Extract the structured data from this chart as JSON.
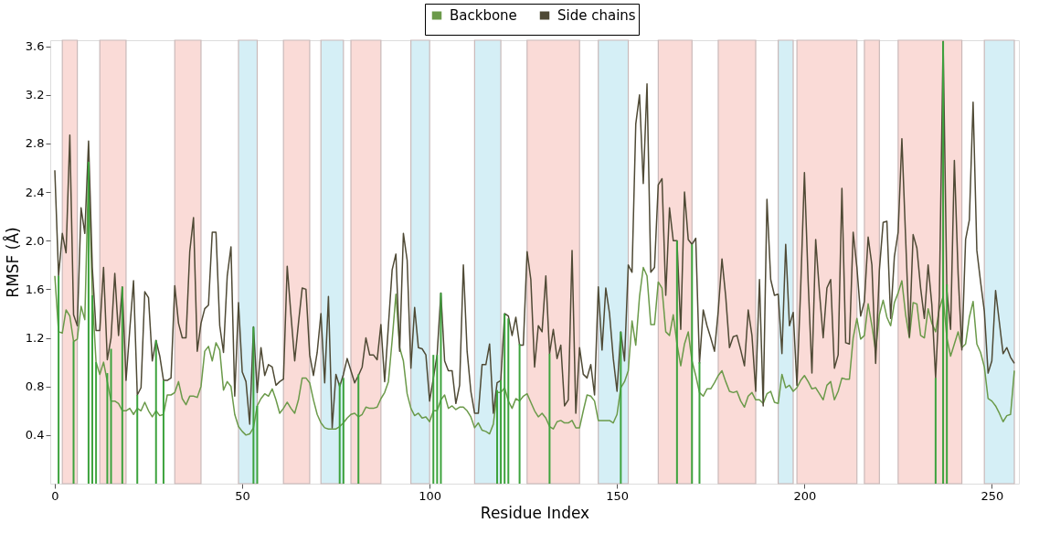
{
  "chart_data": {
    "type": "line",
    "xlabel": "Residue Index",
    "ylabel": "RMSF (Å)",
    "xlim": [
      0,
      256
    ],
    "ylim": [
      0,
      3.65
    ],
    "xticks": [
      0,
      50,
      100,
      150,
      200,
      250
    ],
    "yticks": [
      0.4,
      0.8,
      1.2,
      1.6,
      {
        "value": 2,
        "label": "2.0"
      },
      2.4,
      2.8,
      3.2,
      3.6
    ],
    "grid": false,
    "legend": "top",
    "x": [
      0,
      1,
      2,
      3,
      4,
      5,
      6,
      7,
      8,
      9,
      10,
      11,
      12,
      13,
      14,
      15,
      16,
      17,
      18,
      19,
      20,
      21,
      22,
      23,
      24,
      25,
      26,
      27,
      28,
      29,
      30,
      31,
      32,
      33,
      34,
      35,
      36,
      37,
      38,
      39,
      40,
      41,
      42,
      43,
      44,
      45,
      46,
      47,
      48,
      49,
      50,
      51,
      52,
      53,
      54,
      55,
      56,
      57,
      58,
      59,
      60,
      61,
      62,
      63,
      64,
      65,
      66,
      67,
      68,
      69,
      70,
      71,
      72,
      73,
      74,
      75,
      76,
      77,
      78,
      79,
      80,
      81,
      82,
      83,
      84,
      85,
      86,
      87,
      88,
      89,
      90,
      91,
      92,
      93,
      94,
      95,
      96,
      97,
      98,
      99,
      100,
      101,
      102,
      103,
      104,
      105,
      106,
      107,
      108,
      109,
      110,
      111,
      112,
      113,
      114,
      115,
      116,
      117,
      118,
      119,
      120,
      121,
      122,
      123,
      124,
      125,
      126,
      127,
      128,
      129,
      130,
      131,
      132,
      133,
      134,
      135,
      136,
      137,
      138,
      139,
      140,
      141,
      142,
      143,
      144,
      145,
      146,
      147,
      148,
      149,
      150,
      151,
      152,
      153,
      154,
      155,
      156,
      157,
      158,
      159,
      160,
      161,
      162,
      163,
      164,
      165,
      166,
      167,
      168,
      169,
      170,
      171,
      172,
      173,
      174,
      175,
      176,
      177,
      178,
      179,
      180,
      181,
      182,
      183,
      184,
      185,
      186,
      187,
      188,
      189,
      190,
      191,
      192,
      193,
      194,
      195,
      196,
      197,
      198,
      199,
      200,
      201,
      202,
      203,
      204,
      205,
      206,
      207,
      208,
      209,
      210,
      211,
      212,
      213,
      214,
      215,
      216,
      217,
      218,
      219,
      220,
      221,
      222,
      223,
      224,
      225,
      226,
      227,
      228,
      229,
      230,
      231,
      232,
      233,
      234,
      235,
      236,
      237,
      238,
      239,
      240,
      241,
      242,
      243,
      244,
      245,
      246,
      247,
      248,
      249,
      250,
      251,
      252,
      253,
      254,
      255,
      256
    ],
    "series": [
      {
        "name": "Backbone",
        "color": "#6b9a4a",
        "values": [
          1.71,
          1.25,
          1.24,
          1.43,
          1.38,
          1.17,
          1.19,
          1.46,
          1.35,
          2.6,
          1.55,
          1.0,
          0.9,
          1.0,
          0.84,
          0.68,
          0.68,
          0.66,
          0.6,
          0.6,
          0.62,
          0.57,
          0.62,
          0.6,
          0.67,
          0.6,
          0.55,
          0.6,
          0.56,
          0.57,
          0.73,
          0.73,
          0.75,
          0.84,
          0.7,
          0.65,
          0.72,
          0.72,
          0.71,
          0.8,
          1.09,
          1.13,
          1.01,
          1.16,
          1.1,
          0.77,
          0.84,
          0.8,
          0.57,
          0.47,
          0.43,
          0.4,
          0.41,
          0.46,
          0.64,
          0.7,
          0.74,
          0.72,
          0.78,
          0.69,
          0.58,
          0.62,
          0.67,
          0.62,
          0.58,
          0.69,
          0.87,
          0.87,
          0.83,
          0.69,
          0.57,
          0.5,
          0.46,
          0.45,
          0.45,
          0.45,
          0.47,
          0.5,
          0.54,
          0.57,
          0.58,
          0.55,
          0.57,
          0.63,
          0.62,
          0.62,
          0.63,
          0.7,
          0.75,
          0.84,
          1.18,
          1.56,
          1.12,
          1.01,
          0.74,
          0.62,
          0.56,
          0.58,
          0.54,
          0.55,
          0.51,
          0.6,
          0.6,
          0.69,
          0.73,
          0.62,
          0.64,
          0.61,
          0.63,
          0.63,
          0.6,
          0.55,
          0.46,
          0.5,
          0.44,
          0.43,
          0.41,
          0.49,
          0.75,
          0.75,
          0.79,
          0.68,
          0.62,
          0.7,
          0.68,
          0.72,
          0.74,
          0.67,
          0.6,
          0.55,
          0.58,
          0.54,
          0.47,
          0.45,
          0.51,
          0.52,
          0.5,
          0.5,
          0.52,
          0.46,
          0.46,
          0.6,
          0.73,
          0.72,
          0.68,
          0.52,
          0.52,
          0.52,
          0.52,
          0.5,
          0.57,
          0.79,
          0.84,
          0.93,
          1.34,
          1.14,
          1.54,
          1.78,
          1.71,
          1.31,
          1.31,
          1.66,
          1.61,
          1.25,
          1.22,
          1.39,
          1.15,
          0.97,
          1.15,
          1.25,
          1.01,
          0.89,
          0.75,
          0.72,
          0.78,
          0.78,
          0.83,
          0.89,
          0.93,
          0.84,
          0.76,
          0.75,
          0.76,
          0.68,
          0.63,
          0.72,
          0.75,
          0.69,
          0.69,
          0.66,
          0.74,
          0.76,
          0.67,
          0.66,
          0.9,
          0.79,
          0.81,
          0.76,
          0.79,
          0.85,
          0.89,
          0.84,
          0.78,
          0.79,
          0.74,
          0.69,
          0.81,
          0.84,
          0.69,
          0.76,
          0.87,
          0.86,
          0.86,
          1.2,
          1.36,
          1.19,
          1.22,
          1.48,
          1.3,
          1.09,
          1.39,
          1.51,
          1.37,
          1.3,
          1.49,
          1.57,
          1.67,
          1.39,
          1.2,
          1.49,
          1.48,
          1.22,
          1.2,
          1.44,
          1.32,
          1.25,
          1.44,
          1.54,
          1.2,
          1.05,
          1.15,
          1.25,
          1.12,
          1.15,
          1.37,
          1.5,
          1.15,
          1.08,
          0.96,
          0.7,
          0.68,
          0.64,
          0.58,
          0.51,
          0.56,
          0.57,
          0.93
        ]
      },
      {
        "name": "Side chains",
        "color": "#4f4a35",
        "values": [
          2.58,
          1.71,
          2.06,
          1.9,
          2.87,
          1.39,
          1.3,
          2.27,
          2.06,
          2.82,
          1.78,
          1.26,
          1.26,
          1.78,
          1.02,
          1.2,
          1.73,
          1.22,
          1.62,
          0.85,
          1.27,
          1.67,
          0.73,
          0.79,
          1.58,
          1.53,
          1.01,
          1.18,
          1.05,
          0.85,
          0.85,
          0.87,
          1.63,
          1.32,
          1.2,
          1.2,
          1.91,
          2.19,
          1.09,
          1.32,
          1.44,
          1.47,
          2.07,
          2.07,
          1.3,
          1.08,
          1.71,
          1.95,
          0.72,
          1.49,
          0.92,
          0.84,
          0.49,
          1.29,
          0.75,
          1.12,
          0.89,
          0.98,
          0.96,
          0.81,
          0.84,
          0.86,
          1.79,
          1.39,
          1.01,
          1.32,
          1.61,
          1.6,
          1.06,
          0.89,
          1.08,
          1.4,
          0.83,
          1.54,
          0.46,
          0.9,
          0.8,
          0.9,
          1.03,
          0.93,
          0.83,
          0.89,
          0.96,
          1.2,
          1.06,
          1.06,
          1.02,
          1.31,
          0.84,
          1.3,
          1.76,
          1.89,
          1.09,
          2.06,
          1.84,
          0.95,
          1.45,
          1.12,
          1.11,
          1.06,
          0.68,
          0.87,
          1.06,
          1.57,
          1.01,
          0.93,
          0.93,
          0.66,
          0.81,
          1.8,
          1.09,
          0.76,
          0.58,
          0.58,
          0.98,
          0.98,
          1.15,
          0.58,
          0.83,
          0.85,
          1.4,
          1.38,
          1.22,
          1.37,
          1.14,
          1.14,
          1.91,
          1.68,
          0.96,
          1.3,
          1.25,
          1.71,
          1.07,
          1.27,
          1.03,
          1.14,
          0.64,
          0.69,
          1.92,
          0.58,
          1.12,
          0.9,
          0.87,
          0.98,
          0.73,
          1.62,
          1.1,
          1.61,
          1.4,
          1.03,
          0.76,
          1.25,
          1.01,
          1.8,
          1.74,
          2.96,
          3.2,
          2.47,
          3.29,
          1.74,
          1.78,
          2.46,
          2.51,
          1.55,
          2.27,
          2.0,
          2.0,
          1.27,
          2.4,
          2.01,
          1.97,
          2.02,
          0.99,
          1.43,
          1.3,
          1.2,
          1.09,
          1.42,
          1.85,
          1.54,
          1.12,
          1.21,
          1.22,
          1.1,
          0.97,
          1.43,
          1.22,
          0.76,
          1.68,
          0.64,
          2.34,
          1.68,
          1.55,
          1.56,
          1.07,
          1.97,
          1.3,
          1.41,
          0.81,
          1.61,
          2.56,
          1.66,
          0.91,
          2.01,
          1.58,
          1.2,
          1.61,
          1.68,
          0.95,
          1.06,
          2.43,
          1.16,
          1.15,
          2.07,
          1.78,
          1.38,
          1.5,
          2.03,
          1.8,
          0.99,
          1.76,
          2.15,
          2.16,
          1.36,
          1.87,
          2.07,
          2.84,
          2.02,
          1.21,
          2.05,
          1.94,
          1.61,
          1.36,
          1.8,
          1.47,
          0.87,
          1.54,
          3.64,
          1.59,
          1.27,
          2.66,
          1.73,
          1.1,
          2.01,
          2.17,
          3.14,
          1.92,
          1.66,
          1.42,
          0.91,
          1.01,
          1.59,
          1.33,
          1.07,
          1.12,
          1.04,
          0.99
        ]
      },
      {
        "type": "bar",
        "color": "#3da33d",
        "x": [
          1,
          5,
          9,
          10,
          11,
          14,
          15,
          18,
          22,
          27,
          29,
          53,
          54,
          76,
          77,
          81,
          101,
          102,
          103,
          118,
          119,
          120,
          121,
          124,
          132,
          151,
          166,
          170,
          172,
          235,
          237,
          238
        ],
        "values": [
          1.71,
          1.17,
          2.65,
          1.55,
          1.0,
          0.91,
          1.11,
          1.62,
          0.73,
          1.18,
          0.85,
          1.29,
          0.64,
          0.83,
          0.87,
          0.9,
          1.06,
          1.06,
          1.57,
          0.77,
          0.85,
          1.4,
          1.36,
          1.15,
          1.07,
          1.25,
          2.0,
          1.97,
          1.0,
          0.87,
          3.64,
          1.64
        ]
      }
    ],
    "bands": [
      {
        "axis": "x",
        "from": 2,
        "to": 6,
        "color": "#fadbd7"
      },
      {
        "axis": "x",
        "from": 12,
        "to": 19,
        "color": "#fadbd7"
      },
      {
        "axis": "x",
        "from": 32,
        "to": 39,
        "color": "#fadbd7"
      },
      {
        "axis": "x",
        "from": 49,
        "to": 54,
        "color": "#d5eff6"
      },
      {
        "axis": "x",
        "from": 61,
        "to": 68,
        "color": "#fadbd7"
      },
      {
        "axis": "x",
        "from": 71,
        "to": 77,
        "color": "#d5eff6"
      },
      {
        "axis": "x",
        "from": 79,
        "to": 87,
        "color": "#fadbd7"
      },
      {
        "axis": "x",
        "from": 95,
        "to": 100,
        "color": "#d5eff6"
      },
      {
        "axis": "x",
        "from": 112,
        "to": 119,
        "color": "#d5eff6"
      },
      {
        "axis": "x",
        "from": 126,
        "to": 140,
        "color": "#fadbd7"
      },
      {
        "axis": "x",
        "from": 145,
        "to": 153,
        "color": "#d5eff6"
      },
      {
        "axis": "x",
        "from": 161,
        "to": 170,
        "color": "#fadbd7"
      },
      {
        "axis": "x",
        "from": 177,
        "to": 187,
        "color": "#fadbd7"
      },
      {
        "axis": "x",
        "from": 193,
        "to": 197,
        "color": "#d5eff6"
      },
      {
        "axis": "x",
        "from": 198,
        "to": 214,
        "color": "#fadbd7"
      },
      {
        "axis": "x",
        "from": 216,
        "to": 220,
        "color": "#fadbd7"
      },
      {
        "axis": "x",
        "from": 225,
        "to": 242,
        "color": "#fadbd7"
      },
      {
        "axis": "x",
        "from": 248,
        "to": 256,
        "color": "#d5eff6"
      }
    ]
  }
}
